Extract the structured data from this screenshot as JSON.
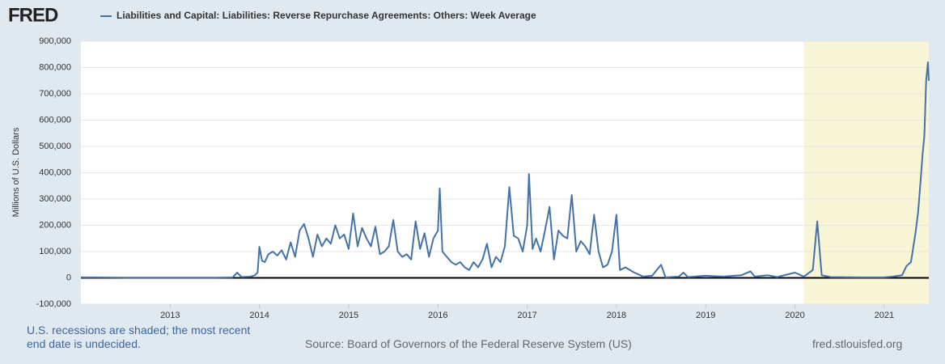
{
  "brand": "FRED",
  "chart_data": {
    "type": "line",
    "series": [
      {
        "name": "Liabilities and Capital: Liabilities: Reverse Repurchase Agreements: Others: Week Average",
        "color": "#4572a7",
        "x": [
          2012.0,
          2012.5,
          2013.0,
          2013.5,
          2013.7,
          2013.75,
          2013.8,
          2013.9,
          2013.95,
          2013.98,
          2014.0,
          2014.03,
          2014.06,
          2014.1,
          2014.15,
          2014.2,
          2014.25,
          2014.3,
          2014.35,
          2014.4,
          2014.45,
          2014.5,
          2014.55,
          2014.6,
          2014.65,
          2014.7,
          2014.75,
          2014.8,
          2014.85,
          2014.9,
          2014.95,
          2015.0,
          2015.05,
          2015.1,
          2015.15,
          2015.2,
          2015.25,
          2015.3,
          2015.35,
          2015.4,
          2015.45,
          2015.5,
          2015.55,
          2015.6,
          2015.65,
          2015.7,
          2015.75,
          2015.8,
          2015.85,
          2015.9,
          2015.95,
          2016.0,
          2016.02,
          2016.05,
          2016.1,
          2016.15,
          2016.2,
          2016.25,
          2016.3,
          2016.35,
          2016.4,
          2016.45,
          2016.5,
          2016.55,
          2016.6,
          2016.65,
          2016.7,
          2016.75,
          2016.8,
          2016.85,
          2016.9,
          2016.95,
          2017.0,
          2017.02,
          2017.06,
          2017.1,
          2017.15,
          2017.2,
          2017.25,
          2017.3,
          2017.35,
          2017.4,
          2017.45,
          2017.5,
          2017.55,
          2017.6,
          2017.65,
          2017.7,
          2017.75,
          2017.8,
          2017.85,
          2017.9,
          2017.95,
          2018.0,
          2018.04,
          2018.1,
          2018.2,
          2018.3,
          2018.4,
          2018.5,
          2018.55,
          2018.7,
          2018.75,
          2018.8,
          2019.0,
          2019.2,
          2019.4,
          2019.5,
          2019.55,
          2019.7,
          2019.8,
          2020.0,
          2020.1,
          2020.2,
          2020.25,
          2020.3,
          2020.4,
          2020.7,
          2021.0,
          2021.1,
          2021.2,
          2021.25,
          2021.3,
          2021.35,
          2021.38,
          2021.41,
          2021.43,
          2021.45,
          2021.47,
          2021.49,
          2021.5
        ],
        "values": [
          2000,
          1000,
          1000,
          1000,
          2000,
          20000,
          3000,
          5000,
          10000,
          20000,
          118000,
          65000,
          60000,
          90000,
          100000,
          85000,
          105000,
          70000,
          135000,
          80000,
          180000,
          205000,
          150000,
          80000,
          165000,
          120000,
          150000,
          130000,
          200000,
          150000,
          165000,
          110000,
          245000,
          120000,
          190000,
          150000,
          120000,
          195000,
          90000,
          100000,
          120000,
          220000,
          100000,
          80000,
          90000,
          70000,
          215000,
          110000,
          170000,
          80000,
          150000,
          180000,
          340000,
          100000,
          80000,
          60000,
          50000,
          60000,
          40000,
          30000,
          60000,
          40000,
          70000,
          130000,
          40000,
          80000,
          60000,
          120000,
          345000,
          160000,
          150000,
          100000,
          200000,
          395000,
          110000,
          150000,
          100000,
          180000,
          270000,
          70000,
          180000,
          160000,
          150000,
          315000,
          100000,
          140000,
          120000,
          90000,
          240000,
          100000,
          40000,
          50000,
          100000,
          240000,
          30000,
          40000,
          20000,
          5000,
          8000,
          50000,
          2000,
          5000,
          20000,
          3000,
          8000,
          5000,
          10000,
          25000,
          5000,
          10000,
          3000,
          20000,
          5000,
          30000,
          215000,
          10000,
          3000,
          2000,
          2000,
          5000,
          10000,
          45000,
          60000,
          170000,
          250000,
          380000,
          470000,
          540000,
          750000,
          820000,
          750000
        ]
      }
    ],
    "ylabel": "Millions of U.S. Dollars",
    "xlim": [
      2012.0,
      2021.5
    ],
    "xticks": [
      2013,
      2014,
      2015,
      2016,
      2017,
      2018,
      2019,
      2020,
      2021
    ],
    "ylim": [
      -100000,
      900000
    ],
    "yticks": [
      {
        "value": -100000,
        "label": "-100,000"
      },
      0,
      {
        "value": 100000,
        "label": "100,000"
      },
      {
        "value": 200000,
        "label": "200,000"
      },
      {
        "value": 300000,
        "label": "300,000"
      },
      {
        "value": 400000,
        "label": "400,000"
      },
      {
        "value": 500000,
        "label": "500,000"
      },
      {
        "value": 600000,
        "label": "600,000"
      },
      {
        "value": 700000,
        "label": "700,000"
      },
      {
        "value": 800000,
        "label": "800,000"
      },
      {
        "value": 900000,
        "label": "900,000"
      }
    ],
    "grid": true,
    "recession_start": 2020.1,
    "recession_color": "#f8f5d6"
  },
  "footer": {
    "note": "U.S. recessions are shaded; the most recent end date is undecided.",
    "source": "Source: Board of Governors of the Federal Reserve System (US)",
    "site": "fred.stlouisfed.org"
  }
}
